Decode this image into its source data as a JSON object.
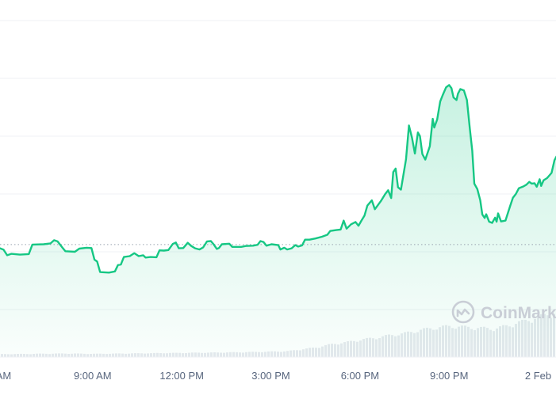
{
  "chart_data": {
    "type": "area",
    "x_ticks": [
      "AM",
      "9:00 AM",
      "12:00 PM",
      "3:00 PM",
      "6:00 PM",
      "9:00 PM",
      "2 Feb"
    ],
    "x_hours": [
      6,
      9,
      12,
      15,
      18,
      21,
      24
    ],
    "x_range_hours": [
      5.88,
      24.6
    ],
    "y_range": [
      0,
      100
    ],
    "baseline_value": 22.5,
    "grid": true,
    "watermark": "CoinMarke",
    "colors": {
      "line": "#16c784",
      "volume": "#e6e9ee",
      "grid": "#eff2f5"
    },
    "price_series": [
      [
        5.88,
        21.2
      ],
      [
        6.0,
        20.7
      ],
      [
        6.12,
        18.8
      ],
      [
        6.26,
        19.3
      ],
      [
        6.55,
        19.0
      ],
      [
        6.85,
        19.2
      ],
      [
        6.97,
        22.5
      ],
      [
        7.35,
        22.6
      ],
      [
        7.58,
        22.9
      ],
      [
        7.7,
        24.0
      ],
      [
        7.82,
        23.6
      ],
      [
        8.0,
        21.2
      ],
      [
        8.08,
        20.2
      ],
      [
        8.4,
        20.0
      ],
      [
        8.55,
        21.1
      ],
      [
        8.8,
        21.4
      ],
      [
        8.96,
        21.3
      ],
      [
        9.06,
        17.3
      ],
      [
        9.15,
        16.6
      ],
      [
        9.25,
        13.0
      ],
      [
        9.55,
        12.8
      ],
      [
        9.75,
        13.2
      ],
      [
        9.85,
        15.4
      ],
      [
        9.95,
        15.6
      ],
      [
        10.05,
        18.2
      ],
      [
        10.25,
        18.5
      ],
      [
        10.4,
        19.5
      ],
      [
        10.55,
        18.5
      ],
      [
        10.7,
        18.8
      ],
      [
        10.78,
        18.0
      ],
      [
        10.95,
        18.2
      ],
      [
        11.15,
        18.1
      ],
      [
        11.25,
        20.5
      ],
      [
        11.4,
        20.4
      ],
      [
        11.55,
        20.6
      ],
      [
        11.7,
        22.7
      ],
      [
        11.8,
        23.2
      ],
      [
        11.9,
        21.2
      ],
      [
        12.05,
        21.3
      ],
      [
        12.2,
        23.1
      ],
      [
        12.32,
        22.0
      ],
      [
        12.45,
        21.2
      ],
      [
        12.6,
        20.8
      ],
      [
        12.72,
        21.5
      ],
      [
        12.85,
        23.6
      ],
      [
        12.98,
        23.7
      ],
      [
        13.08,
        22.5
      ],
      [
        13.18,
        21.0
      ],
      [
        13.25,
        21.3
      ],
      [
        13.35,
        22.6
      ],
      [
        13.6,
        22.8
      ],
      [
        13.7,
        21.7
      ],
      [
        14.0,
        21.7
      ],
      [
        14.15,
        22.0
      ],
      [
        14.4,
        22.1
      ],
      [
        14.55,
        22.4
      ],
      [
        14.65,
        23.7
      ],
      [
        14.75,
        23.4
      ],
      [
        14.85,
        22.1
      ],
      [
        15.02,
        22.6
      ],
      [
        15.25,
        22.3
      ],
      [
        15.32,
        20.8
      ],
      [
        15.45,
        21.4
      ],
      [
        15.55,
        20.8
      ],
      [
        15.7,
        21.2
      ],
      [
        15.82,
        22.3
      ],
      [
        15.92,
        21.8
      ],
      [
        16.05,
        22.2
      ],
      [
        16.15,
        24.2
      ],
      [
        16.3,
        24.2
      ],
      [
        16.5,
        24.6
      ],
      [
        16.72,
        25.2
      ],
      [
        16.9,
        25.9
      ],
      [
        17.0,
        27.2
      ],
      [
        17.2,
        27.5
      ],
      [
        17.35,
        27.7
      ],
      [
        17.45,
        30.8
      ],
      [
        17.55,
        28.0
      ],
      [
        17.7,
        29.5
      ],
      [
        17.85,
        30.3
      ],
      [
        17.95,
        29.0
      ],
      [
        18.05,
        30.8
      ],
      [
        18.15,
        32.5
      ],
      [
        18.25,
        36.0
      ],
      [
        18.4,
        37.8
      ],
      [
        18.5,
        34.7
      ],
      [
        18.7,
        37.5
      ],
      [
        18.85,
        40.0
      ],
      [
        18.95,
        41.3
      ],
      [
        19.05,
        38.6
      ],
      [
        19.12,
        47.6
      ],
      [
        19.2,
        48.8
      ],
      [
        19.28,
        42.3
      ],
      [
        19.38,
        41.5
      ],
      [
        19.55,
        52.0
      ],
      [
        19.65,
        63.7
      ],
      [
        19.75,
        59.5
      ],
      [
        19.85,
        54.0
      ],
      [
        19.95,
        61.3
      ],
      [
        20.02,
        60.0
      ],
      [
        20.1,
        53.8
      ],
      [
        20.2,
        51.9
      ],
      [
        20.35,
        56.5
      ],
      [
        20.45,
        66.0
      ],
      [
        20.5,
        63.0
      ],
      [
        20.6,
        65.8
      ],
      [
        20.7,
        72.0
      ],
      [
        20.78,
        74.1
      ],
      [
        20.9,
        76.9
      ],
      [
        21.0,
        77.7
      ],
      [
        21.08,
        76.6
      ],
      [
        21.15,
        73.4
      ],
      [
        21.25,
        72.5
      ],
      [
        21.3,
        74.7
      ],
      [
        21.38,
        76.3
      ],
      [
        21.5,
        75.8
      ],
      [
        21.6,
        72.5
      ],
      [
        21.7,
        62.5
      ],
      [
        21.78,
        55.0
      ],
      [
        21.85,
        43.6
      ],
      [
        21.95,
        41.7
      ],
      [
        22.05,
        37.8
      ],
      [
        22.12,
        32.9
      ],
      [
        22.2,
        31.7
      ],
      [
        22.25,
        33.0
      ],
      [
        22.35,
        30.4
      ],
      [
        22.45,
        30.0
      ],
      [
        22.55,
        31.8
      ],
      [
        22.6,
        30.4
      ],
      [
        22.65,
        33.3
      ],
      [
        22.75,
        30.5
      ],
      [
        22.9,
        30.8
      ],
      [
        23.05,
        35.7
      ],
      [
        23.15,
        38.7
      ],
      [
        23.25,
        40.0
      ],
      [
        23.35,
        42.0
      ],
      [
        23.5,
        42.6
      ],
      [
        23.6,
        43.2
      ],
      [
        23.7,
        44.2
      ],
      [
        23.78,
        43.6
      ],
      [
        23.88,
        43.7
      ],
      [
        23.95,
        42.5
      ],
      [
        24.05,
        45.1
      ],
      [
        24.1,
        42.8
      ],
      [
        24.18,
        44.7
      ],
      [
        24.3,
        45.5
      ],
      [
        24.45,
        47.3
      ],
      [
        24.55,
        51.7
      ],
      [
        24.62,
        53.0
      ]
    ],
    "volume_series": [
      [
        5.88,
        0.9
      ],
      [
        7.0,
        1.0
      ],
      [
        8.0,
        1.1
      ],
      [
        9.0,
        1.0
      ],
      [
        10.0,
        1.1
      ],
      [
        11.0,
        1.2
      ],
      [
        12.0,
        1.3
      ],
      [
        13.0,
        1.4
      ],
      [
        14.0,
        1.5
      ],
      [
        15.0,
        1.7
      ],
      [
        15.5,
        1.8
      ],
      [
        16.0,
        2.4
      ],
      [
        16.5,
        3.0
      ],
      [
        17.0,
        4.0
      ],
      [
        17.5,
        4.6
      ],
      [
        18.0,
        5.4
      ],
      [
        18.5,
        6.0
      ],
      [
        19.0,
        6.8
      ],
      [
        19.5,
        7.4
      ],
      [
        20.0,
        8.4
      ],
      [
        20.5,
        9.1
      ],
      [
        21.0,
        9.6
      ],
      [
        21.5,
        9.3
      ],
      [
        22.0,
        9.0
      ],
      [
        22.5,
        8.8
      ],
      [
        23.0,
        9.9
      ],
      [
        23.5,
        11.2
      ],
      [
        24.0,
        12.4
      ],
      [
        24.3,
        13.4
      ],
      [
        24.62,
        14.0
      ]
    ]
  }
}
